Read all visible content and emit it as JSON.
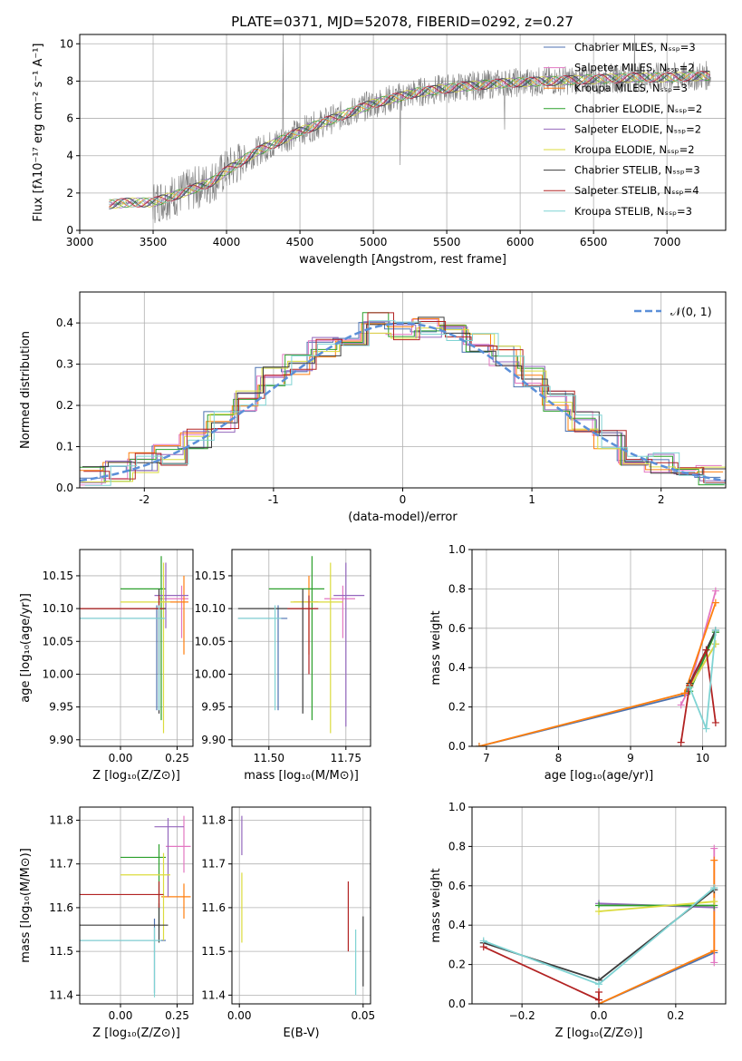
{
  "figure_title": "PLATE=0371, MJD=52078, FIBERID=0292, z=0.27",
  "colors": {
    "chabrier_miles": "#4c72b0",
    "salpeter_miles": "#e377c2",
    "kroupa_miles": "#ff7f0e",
    "chabrier_elodie": "#2ca02c",
    "salpeter_elodie": "#9467bd",
    "kroupa_elodie": "#dbdb3d",
    "chabrier_stelib": "#3b3b3b",
    "salpeter_stelib": "#b22222",
    "kroupa_stelib": "#7fd3d3",
    "data": "#808080",
    "normal": "#5b8fd8"
  },
  "chart_data": [
    {
      "id": "spectrum",
      "type": "line",
      "xlabel": "wavelength [Angstrom, rest frame]",
      "ylabel": "Flux [fλ10⁻¹⁷ erg cm⁻² s⁻¹ A⁻¹]",
      "xlim": [
        3000,
        7400
      ],
      "ylim": [
        0,
        10.5
      ],
      "xticks": [
        3000,
        3500,
        4000,
        4500,
        5000,
        5500,
        6000,
        6500,
        7000
      ],
      "yticks": [
        0,
        2,
        4,
        6,
        8,
        10
      ],
      "legend_position": "top-right",
      "legend": [
        "Chabrier MILES, Nₛₛₚ=3",
        "Salpeter MILES, Nₛₛₚ=2",
        "Kroupa MILES, Nₛₛₚ=3",
        "Chabrier ELODIE, Nₛₛₚ=2",
        "Salpeter ELODIE, Nₛₛₚ=2",
        "Kroupa ELODIE, Nₛₛₚ=2",
        "Chabrier STELIB, Nₛₛₚ=3",
        "Salpeter STELIB, Nₛₛₚ=4",
        "Kroupa STELIB, Nₛₛₚ=3"
      ],
      "continuum": {
        "x": [
          3200,
          3350,
          3500,
          3700,
          3900,
          4000,
          4200,
          4500,
          4800,
          5000,
          5300,
          5600,
          5900,
          6200,
          6500,
          6800,
          7000,
          7300
        ],
        "y": [
          1.4,
          1.5,
          1.5,
          2.0,
          2.6,
          3.2,
          4.2,
          5.3,
          6.2,
          6.8,
          7.4,
          7.7,
          7.9,
          8.0,
          8.1,
          8.2,
          8.2,
          8.3
        ]
      },
      "spikes": [
        {
          "x": 4385,
          "y": 10.5
        },
        {
          "x": 6780,
          "y": 10.5
        },
        {
          "x": 5183,
          "y": 3.5
        },
        {
          "x": 5895,
          "y": 5.4
        }
      ]
    },
    {
      "id": "residuals",
      "type": "step",
      "xlabel": "(data-model)/error",
      "ylabel": "Normed distribution",
      "xlim": [
        -2.5,
        2.5
      ],
      "ylim": [
        0,
        0.475
      ],
      "xticks": [
        -2,
        -1,
        0,
        1,
        2
      ],
      "yticks": [
        0.0,
        0.1,
        0.2,
        0.3,
        0.4
      ],
      "legend": "𝒩(0, 1)",
      "legend_position": "top-right",
      "bin_edges": [
        -2.5,
        -2.3,
        -2.1,
        -1.9,
        -1.7,
        -1.5,
        -1.3,
        -1.1,
        -0.9,
        -0.7,
        -0.5,
        -0.3,
        -0.1,
        0.1,
        0.3,
        0.5,
        0.7,
        0.9,
        1.1,
        1.3,
        1.5,
        1.7,
        1.9,
        2.1,
        2.3,
        2.5
      ],
      "bin_values": [
        0.03,
        0.04,
        0.06,
        0.08,
        0.12,
        0.16,
        0.21,
        0.27,
        0.3,
        0.34,
        0.37,
        0.4,
        0.38,
        0.39,
        0.37,
        0.35,
        0.32,
        0.27,
        0.21,
        0.16,
        0.12,
        0.08,
        0.06,
        0.04,
        0.03
      ]
    },
    {
      "id": "age_vs_Z",
      "type": "errorbar",
      "xlabel": "Z [log₁₀(Z/Z⊙)]",
      "ylabel": "age  [log₁₀(age/yr)]",
      "xlim": [
        -0.18,
        0.32
      ],
      "ylim": [
        9.89,
        10.19
      ],
      "xticks": [
        0.0,
        0.25
      ],
      "xticklabels": [
        "0.00",
        "0.25"
      ],
      "yticks": [
        9.9,
        9.95,
        10.0,
        10.05,
        10.1,
        10.15
      ],
      "yticklabels": [
        "9.90",
        "9.95",
        "10.00",
        "10.05",
        "10.10",
        "10.15"
      ],
      "points": [
        {
          "s": "chabrier_miles",
          "x": 0.16,
          "y": 10.085,
          "xerr": [
            0.34,
            0.03
          ],
          "yerr": [
            0.14,
            0.02
          ]
        },
        {
          "s": "salpeter_miles",
          "x": 0.27,
          "y": 10.115,
          "xerr": [
            0.1,
            0.03
          ],
          "yerr": [
            0.06,
            0.02
          ]
        },
        {
          "s": "kroupa_miles",
          "x": 0.28,
          "y": 10.11,
          "xerr": [
            0.1,
            0.02
          ],
          "yerr": [
            0.08,
            0.04
          ]
        },
        {
          "s": "chabrier_elodie",
          "x": 0.18,
          "y": 10.13,
          "xerr": [
            0.18,
            0.02
          ],
          "yerr": [
            0.2,
            0.05
          ]
        },
        {
          "s": "salpeter_elodie",
          "x": 0.2,
          "y": 10.12,
          "xerr": [
            0.05,
            0.1
          ],
          "yerr": [
            0.05,
            0.05
          ]
        },
        {
          "s": "kroupa_elodie",
          "x": 0.19,
          "y": 10.11,
          "xerr": [
            0.19,
            0.03
          ],
          "yerr": [
            0.2,
            0.06
          ]
        },
        {
          "s": "chabrier_stelib",
          "x": 0.17,
          "y": 10.1,
          "xerr": [
            0.35,
            0.03
          ],
          "yerr": [
            0.16,
            0.03
          ]
        },
        {
          "s": "salpeter_stelib",
          "x": 0.17,
          "y": 10.1,
          "xerr": [
            0.35,
            0.02
          ],
          "yerr": [
            0.1,
            0.02
          ]
        },
        {
          "s": "kroupa_stelib",
          "x": 0.17,
          "y": 10.085,
          "xerr": [
            0.35,
            0.03
          ],
          "yerr": [
            0.14,
            0.02
          ]
        }
      ]
    },
    {
      "id": "age_vs_mass",
      "type": "errorbar",
      "xlabel": "mass [log₁₀(M/M⊙)]",
      "ylabel": "",
      "xlim": [
        11.38,
        11.83
      ],
      "ylim": [
        9.89,
        10.19
      ],
      "xticks": [
        11.5,
        11.75
      ],
      "xticklabels": [
        "11.50",
        "11.75"
      ],
      "yticks": [
        9.9,
        9.95,
        10.0,
        10.05,
        10.1,
        10.15
      ],
      "yticklabels": [
        "9.90",
        "9.95",
        "10.00",
        "10.05",
        "10.10",
        "10.15"
      ],
      "points": [
        {
          "s": "chabrier_miles",
          "x": 11.53,
          "y": 10.085,
          "xerr": [
            0.13,
            0.03
          ],
          "yerr": [
            0.14,
            0.02
          ]
        },
        {
          "s": "salpeter_miles",
          "x": 11.74,
          "y": 10.115,
          "xerr": [
            0.06,
            0.04
          ],
          "yerr": [
            0.06,
            0.02
          ]
        },
        {
          "s": "kroupa_miles",
          "x": 11.63,
          "y": 10.11,
          "xerr": [
            0.05,
            0.03
          ],
          "yerr": [
            0.08,
            0.04
          ]
        },
        {
          "s": "chabrier_elodie",
          "x": 11.64,
          "y": 10.13,
          "xerr": [
            0.14,
            0.04
          ],
          "yerr": [
            0.2,
            0.05
          ]
        },
        {
          "s": "salpeter_elodie",
          "x": 11.75,
          "y": 10.12,
          "xerr": [
            0.04,
            0.06
          ],
          "yerr": [
            0.2,
            0.05
          ]
        },
        {
          "s": "kroupa_elodie",
          "x": 11.7,
          "y": 10.11,
          "xerr": [
            0.13,
            0.04
          ],
          "yerr": [
            0.2,
            0.06
          ]
        },
        {
          "s": "chabrier_stelib",
          "x": 11.61,
          "y": 10.1,
          "xerr": [
            0.21,
            0.05
          ],
          "yerr": [
            0.16,
            0.03
          ]
        },
        {
          "s": "salpeter_stelib",
          "x": 11.63,
          "y": 10.1,
          "xerr": [
            0.07,
            0.03
          ],
          "yerr": [
            0.1,
            0.02
          ]
        },
        {
          "s": "kroupa_stelib",
          "x": 11.52,
          "y": 10.085,
          "xerr": [
            0.12,
            0.02
          ],
          "yerr": [
            0.14,
            0.02
          ]
        }
      ]
    },
    {
      "id": "weight_vs_age",
      "type": "line",
      "xlabel": "age  [log₁₀(age/yr)]",
      "ylabel": "mass weight",
      "xlim": [
        6.8,
        10.32
      ],
      "ylim": [
        0,
        1.0
      ],
      "xticks": [
        7,
        8,
        9,
        10
      ],
      "yticks": [
        0.0,
        0.2,
        0.4,
        0.6,
        0.8,
        1.0
      ],
      "series": [
        {
          "s": "chabrier_miles",
          "x": [
            6.9,
            9.75,
            10.18
          ],
          "y": [
            0.0,
            0.26,
            0.58
          ]
        },
        {
          "s": "salpeter_miles",
          "x": [
            9.7,
            9.82,
            10.18
          ],
          "y": [
            0.21,
            0.3,
            0.79
          ]
        },
        {
          "s": "kroupa_miles",
          "x": [
            6.9,
            9.75,
            10.18
          ],
          "y": [
            0.0,
            0.27,
            0.73
          ]
        },
        {
          "s": "chabrier_elodie",
          "x": [
            9.82,
            10.18
          ],
          "y": [
            0.28,
            0.58
          ]
        },
        {
          "s": "salpeter_elodie",
          "x": [
            9.82,
            10.18
          ],
          "y": [
            0.3,
            0.52
          ]
        },
        {
          "s": "kroupa_elodie",
          "x": [
            9.82,
            10.18
          ],
          "y": [
            0.3,
            0.52
          ]
        },
        {
          "s": "chabrier_stelib",
          "x": [
            9.82,
            10.05,
            10.18
          ],
          "y": [
            0.32,
            0.49,
            0.59
          ]
        },
        {
          "s": "salpeter_stelib",
          "x": [
            9.7,
            9.82,
            10.05,
            10.18
          ],
          "y": [
            0.02,
            0.31,
            0.49,
            0.12
          ]
        },
        {
          "s": "kroupa_stelib",
          "x": [
            9.82,
            10.05,
            10.18
          ],
          "y": [
            0.3,
            0.09,
            0.59
          ]
        }
      ]
    },
    {
      "id": "mass_vs_Z",
      "type": "errorbar",
      "xlabel": "Z [log₁₀(Z/Z⊙)]",
      "ylabel": "mass [log₁₀(M/M⊙)]",
      "xlim": [
        -0.18,
        0.32
      ],
      "ylim": [
        11.38,
        11.83
      ],
      "xticks": [
        0.0,
        0.25
      ],
      "xticklabels": [
        "0.00",
        "0.25"
      ],
      "yticks": [
        11.4,
        11.5,
        11.6,
        11.7,
        11.8
      ],
      "yticklabels": [
        "11.4",
        "11.5",
        "11.6",
        "11.7",
        "11.8"
      ],
      "points": [
        {
          "s": "chabrier_miles",
          "x": 0.15,
          "y": 11.525,
          "xerr": [
            0.33,
            0.05
          ],
          "yerr": [
            0.12,
            0.05
          ]
        },
        {
          "s": "salpeter_miles",
          "x": 0.28,
          "y": 11.74,
          "xerr": [
            0.08,
            0.03
          ],
          "yerr": [
            0.06,
            0.07
          ]
        },
        {
          "s": "kroupa_miles",
          "x": 0.28,
          "y": 11.625,
          "xerr": [
            0.1,
            0.03
          ],
          "yerr": [
            0.05,
            0.03
          ]
        },
        {
          "s": "chabrier_elodie",
          "x": 0.17,
          "y": 11.715,
          "xerr": [
            0.17,
            0.03
          ],
          "yerr": [
            0.16,
            0.03
          ]
        },
        {
          "s": "salpeter_elodie",
          "x": 0.21,
          "y": 11.785,
          "xerr": [
            0.06,
            0.07
          ],
          "yerr": [
            0.16,
            0.02
          ]
        },
        {
          "s": "kroupa_elodie",
          "x": 0.19,
          "y": 11.675,
          "xerr": [
            0.19,
            0.03
          ],
          "yerr": [
            0.15,
            0.05
          ]
        },
        {
          "s": "chabrier_stelib",
          "x": 0.17,
          "y": 11.56,
          "xerr": [
            0.35,
            0.04
          ],
          "yerr": [
            0.04,
            0.05
          ]
        },
        {
          "s": "salpeter_stelib",
          "x": 0.17,
          "y": 11.63,
          "xerr": [
            0.35,
            0.02
          ],
          "yerr": [
            0.03,
            0.03
          ]
        },
        {
          "s": "kroupa_stelib",
          "x": 0.15,
          "y": 11.525,
          "xerr": [
            0.33,
            0.03
          ],
          "yerr": [
            0.13,
            0.03
          ]
        }
      ]
    },
    {
      "id": "mass_vs_ebv",
      "type": "errorbar",
      "xlabel": "E(B-V)",
      "ylabel": "",
      "xlim": [
        -0.003,
        0.053
      ],
      "ylim": [
        11.38,
        11.83
      ],
      "xticks": [
        0.0,
        0.05
      ],
      "xticklabels": [
        "0.00",
        "0.05"
      ],
      "yticks": [
        11.4,
        11.5,
        11.6,
        11.7,
        11.8
      ],
      "yticklabels": [
        "11.4",
        "11.5",
        "11.6",
        "11.7",
        "11.8"
      ],
      "points": [
        {
          "s": "salpeter_elodie",
          "x": 0.001,
          "y": 11.74,
          "xerr": [
            0,
            0
          ],
          "yerr": [
            0.02,
            0.07
          ]
        },
        {
          "s": "kroupa_elodie",
          "x": 0.001,
          "y": 11.62,
          "xerr": [
            0,
            0
          ],
          "yerr": [
            0.1,
            0.06
          ]
        },
        {
          "s": "salpeter_stelib",
          "x": 0.044,
          "y": 11.58,
          "xerr": [
            0,
            0
          ],
          "yerr": [
            0.08,
            0.08
          ]
        },
        {
          "s": "kroupa_stelib",
          "x": 0.047,
          "y": 11.48,
          "xerr": [
            0,
            0
          ],
          "yerr": [
            0.08,
            0.07
          ]
        },
        {
          "s": "chabrier_stelib",
          "x": 0.05,
          "y": 11.5,
          "xerr": [
            0,
            0
          ],
          "yerr": [
            0.08,
            0.08
          ]
        }
      ]
    },
    {
      "id": "weight_vs_Z",
      "type": "line",
      "xlabel": "Z [log₁₀(Z/Z⊙)]",
      "ylabel": "mass weight",
      "xlim": [
        -0.33,
        0.33
      ],
      "ylim": [
        0,
        1.0
      ],
      "xticks": [
        -0.2,
        0.0,
        0.2
      ],
      "xticklabels": [
        "−0.2",
        "0.0",
        "0.2"
      ],
      "yticks": [
        0.0,
        0.2,
        0.4,
        0.6,
        0.8,
        1.0
      ],
      "series": [
        {
          "s": "chabrier_miles",
          "x": [
            0.0,
            0.3
          ],
          "y": [
            0.0,
            0.26
          ]
        },
        {
          "s": "salpeter_miles",
          "x": [
            0.3,
            0.3
          ],
          "y": [
            0.21,
            0.79
          ]
        },
        {
          "s": "kroupa_miles",
          "x": [
            0.0,
            0.3,
            0.3
          ],
          "y": [
            0.0,
            0.27,
            0.73
          ]
        },
        {
          "s": "salpeter_elodie",
          "x": [
            0.0,
            0.3
          ],
          "y": [
            0.51,
            0.49
          ]
        },
        {
          "s": "chabrier_elodie",
          "x": [
            0.0,
            0.3
          ],
          "y": [
            0.5,
            0.5
          ]
        },
        {
          "s": "kroupa_elodie",
          "x": [
            0.0,
            0.3
          ],
          "y": [
            0.47,
            0.52
          ]
        },
        {
          "s": "chabrier_stelib",
          "x": [
            -0.3,
            0.0,
            0.3
          ],
          "y": [
            0.31,
            0.12,
            0.58
          ]
        },
        {
          "s": "kroupa_stelib",
          "x": [
            -0.3,
            0.0,
            0.3
          ],
          "y": [
            0.32,
            0.1,
            0.59
          ]
        },
        {
          "s": "salpeter_stelib",
          "x": [
            -0.3,
            0.0,
            0.0
          ],
          "y": [
            0.29,
            0.02,
            0.06
          ]
        }
      ]
    }
  ]
}
